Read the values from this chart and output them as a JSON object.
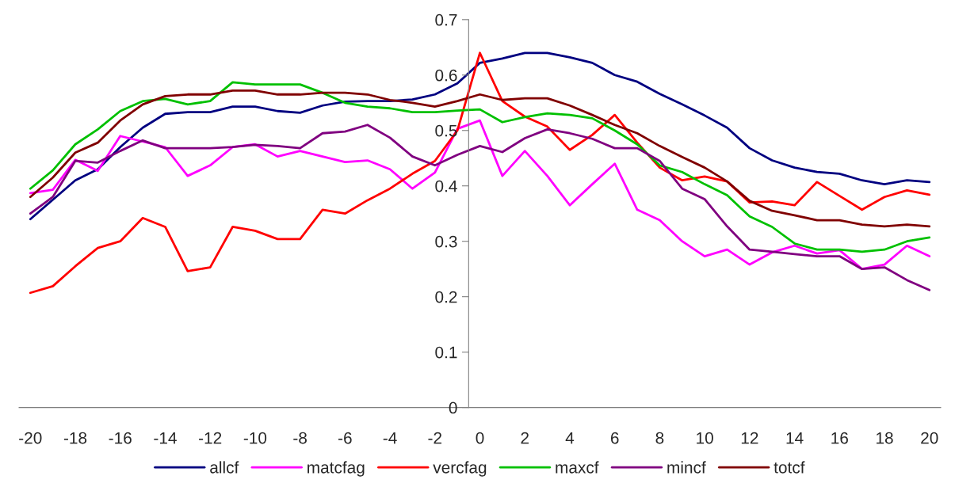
{
  "chart_data": {
    "type": "line",
    "categories": [
      "-20",
      null,
      "-18",
      null,
      "-16",
      null,
      "-14",
      null,
      "-12",
      null,
      "-10",
      null,
      "-8",
      null,
      "-6",
      null,
      "-4",
      null,
      "-2",
      null,
      "0",
      null,
      "2",
      null,
      "4",
      null,
      "6",
      null,
      "8",
      null,
      "10",
      null,
      "12",
      null,
      "14",
      null,
      "16",
      null,
      "18",
      null,
      "20"
    ],
    "series": [
      {
        "name": "allcf",
        "color": "#000080",
        "values": [
          0.34,
          0.375,
          0.41,
          0.43,
          0.47,
          0.505,
          0.53,
          0.533,
          0.533,
          0.543,
          0.543,
          0.535,
          0.532,
          0.545,
          0.552,
          0.553,
          0.553,
          0.556,
          0.565,
          0.585,
          0.622,
          0.63,
          0.64,
          0.64,
          0.632,
          0.622,
          0.6,
          0.588,
          0.566,
          0.547,
          0.527,
          0.505,
          0.468,
          0.446,
          0.433,
          0.425,
          0.422,
          0.41,
          0.403,
          0.41,
          0.407
        ]
      },
      {
        "name": "matcfag",
        "color": "#ff00ff",
        "values": [
          0.387,
          0.393,
          0.447,
          0.427,
          0.49,
          0.48,
          0.47,
          0.418,
          0.437,
          0.47,
          0.475,
          0.453,
          0.463,
          0.453,
          0.443,
          0.446,
          0.43,
          0.395,
          0.424,
          0.503,
          0.518,
          0.418,
          0.463,
          0.418,
          0.365,
          0.403,
          0.44,
          0.357,
          0.338,
          0.3,
          0.273,
          0.285,
          0.258,
          0.28,
          0.292,
          0.278,
          0.284,
          0.25,
          0.258,
          0.292,
          0.273
        ]
      },
      {
        "name": "vercfag",
        "color": "#ff0000",
        "values": [
          0.207,
          0.219,
          0.255,
          0.288,
          0.3,
          0.342,
          0.326,
          0.246,
          0.253,
          0.326,
          0.319,
          0.304,
          0.304,
          0.357,
          0.35,
          0.374,
          0.395,
          0.422,
          0.445,
          0.5,
          0.64,
          0.553,
          0.525,
          0.507,
          0.465,
          0.492,
          0.528,
          0.478,
          0.433,
          0.41,
          0.417,
          0.408,
          0.37,
          0.372,
          0.365,
          0.407,
          0.382,
          0.357,
          0.38,
          0.392,
          0.384
        ]
      },
      {
        "name": "maxcf",
        "color": "#00c000",
        "values": [
          0.395,
          0.428,
          0.475,
          0.502,
          0.535,
          0.553,
          0.557,
          0.547,
          0.553,
          0.587,
          0.583,
          0.583,
          0.583,
          0.568,
          0.55,
          0.543,
          0.54,
          0.533,
          0.533,
          0.536,
          0.538,
          0.515,
          0.524,
          0.531,
          0.528,
          0.522,
          0.5,
          0.475,
          0.437,
          0.425,
          0.403,
          0.383,
          0.345,
          0.326,
          0.296,
          0.285,
          0.285,
          0.281,
          0.285,
          0.3,
          0.307
        ]
      },
      {
        "name": "mincf",
        "color": "#800080",
        "values": [
          0.35,
          0.38,
          0.445,
          0.442,
          0.463,
          0.482,
          0.468,
          0.468,
          0.468,
          0.47,
          0.474,
          0.472,
          0.468,
          0.495,
          0.498,
          0.51,
          0.487,
          0.453,
          0.437,
          0.456,
          0.472,
          0.461,
          0.486,
          0.502,
          0.495,
          0.485,
          0.468,
          0.468,
          0.445,
          0.395,
          0.376,
          0.327,
          0.285,
          0.281,
          0.277,
          0.273,
          0.273,
          0.25,
          0.253,
          0.23,
          0.212
        ]
      },
      {
        "name": "totcf",
        "color": "#800000",
        "values": [
          0.38,
          0.415,
          0.46,
          0.478,
          0.518,
          0.547,
          0.562,
          0.565,
          0.565,
          0.572,
          0.572,
          0.565,
          0.565,
          0.568,
          0.568,
          0.565,
          0.555,
          0.55,
          0.543,
          0.553,
          0.565,
          0.555,
          0.558,
          0.558,
          0.545,
          0.528,
          0.51,
          0.495,
          0.472,
          0.452,
          0.433,
          0.408,
          0.373,
          0.355,
          0.347,
          0.338,
          0.338,
          0.33,
          0.327,
          0.33,
          0.327
        ]
      }
    ],
    "ylim": [
      0,
      0.7
    ],
    "yticks": [
      0,
      0.1,
      0.2,
      0.3,
      0.4,
      0.5,
      0.6,
      0.7
    ],
    "grid": false,
    "legend": "bottom",
    "marker": "none",
    "line_style": "solid"
  }
}
